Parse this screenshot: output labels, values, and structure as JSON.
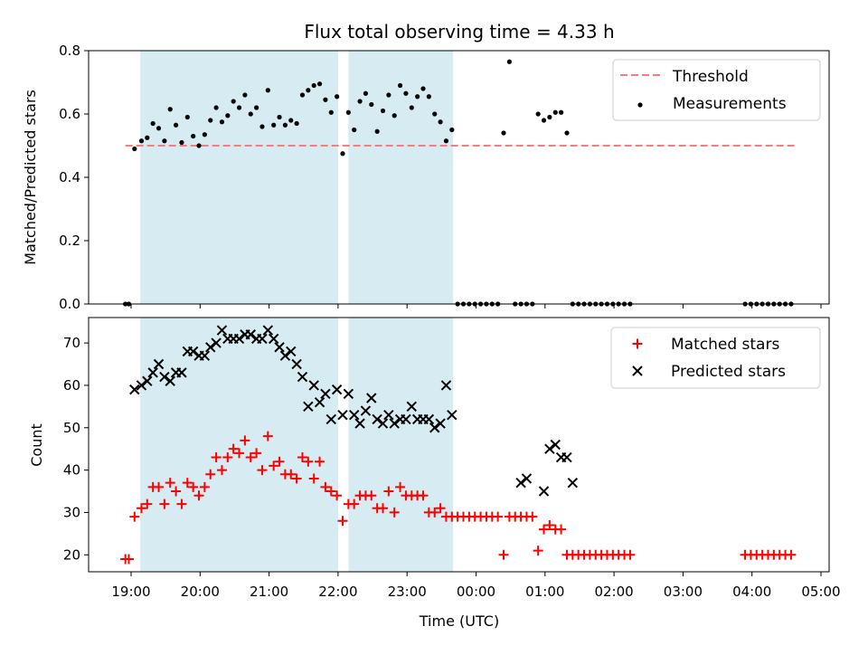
{
  "title": "Flux total observing time = 4.33 h",
  "chart_data": {
    "type": "scatter",
    "title": "Flux total observing time = 4.33 h",
    "xlabel": "Time (UTC)",
    "x_ticks": [
      "19:00",
      "20:00",
      "21:00",
      "22:00",
      "23:00",
      "00:00",
      "01:00",
      "02:00",
      "03:00",
      "04:00",
      "05:00"
    ],
    "shaded_intervals": [
      [
        "19:08",
        "22:00"
      ],
      [
        "22:09",
        "23:40"
      ]
    ],
    "top_panel": {
      "ylabel": "Matched/Predicted stars",
      "ylim": [
        0,
        0.8
      ],
      "y_ticks": [
        "0.0",
        "0.2",
        "0.4",
        "0.6",
        "0.8"
      ],
      "legend": [
        "Threshold",
        "Measurements"
      ],
      "threshold": {
        "name": "Threshold",
        "y": 0.5,
        "x_start": "18:55",
        "x_end": "04:40",
        "color": "#f08080"
      },
      "measurements": {
        "name": "Measurements",
        "color": "#000000",
        "x": [
          "18:55",
          "18:58",
          "19:03",
          "19:09",
          "19:14",
          "19:19",
          "19:24",
          "19:29",
          "19:34",
          "19:39",
          "19:44",
          "19:49",
          "19:54",
          "19:59",
          "20:04",
          "20:09",
          "20:14",
          "20:19",
          "20:24",
          "20:29",
          "20:34",
          "20:39",
          "20:44",
          "20:49",
          "20:54",
          "20:59",
          "21:04",
          "21:09",
          "21:14",
          "21:19",
          "21:24",
          "21:29",
          "21:34",
          "21:39",
          "21:44",
          "21:49",
          "21:54",
          "21:59",
          "22:04",
          "22:09",
          "22:14",
          "22:19",
          "22:24",
          "22:29",
          "22:34",
          "22:39",
          "22:44",
          "22:49",
          "22:54",
          "22:59",
          "23:04",
          "23:09",
          "23:14",
          "23:19",
          "23:24",
          "23:29",
          "23:34",
          "23:39",
          "23:44",
          "23:49",
          "23:54",
          "23:59",
          "00:04",
          "00:09",
          "00:14",
          "00:19",
          "00:24",
          "00:29",
          "00:34",
          "00:39",
          "00:44",
          "00:49",
          "00:54",
          "00:59",
          "01:04",
          "01:09",
          "01:14",
          "01:19",
          "01:24",
          "01:29",
          "01:34",
          "01:39",
          "01:44",
          "01:49",
          "01:54",
          "01:59",
          "02:04",
          "02:09",
          "02:14",
          "03:54",
          "03:59",
          "04:04",
          "04:09",
          "04:14",
          "04:19",
          "04:24",
          "04:29",
          "04:34"
        ],
        "y": [
          0.0,
          0.0,
          0.49,
          0.515,
          0.525,
          0.57,
          0.555,
          0.515,
          0.615,
          0.565,
          0.51,
          0.59,
          0.53,
          0.5,
          0.535,
          0.58,
          0.62,
          0.575,
          0.595,
          0.64,
          0.62,
          0.66,
          0.6,
          0.62,
          0.56,
          0.675,
          0.565,
          0.59,
          0.565,
          0.58,
          0.57,
          0.66,
          0.675,
          0.69,
          0.695,
          0.645,
          0.605,
          0.655,
          0.475,
          0.605,
          0.55,
          0.64,
          0.665,
          0.63,
          0.545,
          0.61,
          0.66,
          0.595,
          0.69,
          0.665,
          0.62,
          0.655,
          0.68,
          0.655,
          0.6,
          0.575,
          0.515,
          0.55,
          0.0,
          0.0,
          0.0,
          0.0,
          0.0,
          0.0,
          0.0,
          0.0,
          0.54,
          0.765,
          0.0,
          0.0,
          0.0,
          0.0,
          0.6,
          0.58,
          0.59,
          0.605,
          0.605,
          0.54,
          0.0,
          0.0,
          0.0,
          0.0,
          0.0,
          0.0,
          0.0,
          0.0,
          0.0,
          0.0,
          0.0,
          0.0,
          0.0,
          0.0,
          0.0,
          0.0,
          0.0,
          0.0,
          0.0,
          0.0
        ]
      }
    },
    "bottom_panel": {
      "ylabel": "Count",
      "ylim": [
        16,
        76
      ],
      "y_ticks": [
        "20",
        "30",
        "40",
        "50",
        "60",
        "70"
      ],
      "legend": [
        "Matched stars",
        "Predicted stars"
      ],
      "series": [
        {
          "name": "Matched stars",
          "marker": "plus",
          "color": "#ff0000",
          "x": [
            "18:55",
            "18:58",
            "19:03",
            "19:09",
            "19:14",
            "19:19",
            "19:24",
            "19:29",
            "19:34",
            "19:39",
            "19:44",
            "19:49",
            "19:54",
            "19:59",
            "20:04",
            "20:09",
            "20:14",
            "20:19",
            "20:24",
            "20:29",
            "20:34",
            "20:39",
            "20:44",
            "20:49",
            "20:54",
            "20:59",
            "21:04",
            "21:09",
            "21:14",
            "21:19",
            "21:24",
            "21:29",
            "21:34",
            "21:39",
            "21:44",
            "21:49",
            "21:54",
            "21:59",
            "22:04",
            "22:09",
            "22:14",
            "22:19",
            "22:24",
            "22:29",
            "22:34",
            "22:39",
            "22:44",
            "22:49",
            "22:54",
            "22:59",
            "23:04",
            "23:09",
            "23:14",
            "23:19",
            "23:24",
            "23:29",
            "23:34",
            "23:39",
            "23:44",
            "23:49",
            "23:54",
            "23:59",
            "00:04",
            "00:09",
            "00:14",
            "00:19",
            "00:24",
            "00:29",
            "00:34",
            "00:39",
            "00:44",
            "00:49",
            "00:54",
            "00:59",
            "01:04",
            "01:09",
            "01:14",
            "01:19",
            "01:24",
            "01:29",
            "01:34",
            "01:39",
            "01:44",
            "01:49",
            "01:54",
            "01:59",
            "02:04",
            "02:09",
            "02:14",
            "03:54",
            "03:59",
            "04:04",
            "04:09",
            "04:14",
            "04:19",
            "04:24",
            "04:29",
            "04:34"
          ],
          "y": [
            19,
            19,
            29,
            31,
            32,
            36,
            36,
            32,
            37,
            35,
            32,
            37,
            36,
            34,
            36,
            39,
            43,
            40,
            43,
            45,
            44,
            47,
            43,
            44,
            40,
            48,
            41,
            42,
            39,
            39,
            38,
            43,
            42,
            38,
            42,
            36,
            35,
            34,
            28,
            32,
            32,
            34,
            34,
            34,
            31,
            31,
            35,
            30,
            36,
            34,
            34,
            34,
            34,
            30,
            30,
            31,
            29,
            29,
            29,
            29,
            29,
            29,
            29,
            29,
            29,
            29,
            20,
            29,
            29,
            29,
            29,
            29,
            21,
            26,
            27,
            26,
            26,
            20,
            20,
            20,
            20,
            20,
            20,
            20,
            20,
            20,
            20,
            20,
            20,
            20,
            20,
            20,
            20,
            20,
            20,
            20,
            20,
            20
          ]
        },
        {
          "name": "Predicted stars",
          "marker": "x",
          "color": "#000000",
          "x": [
            "19:03",
            "19:09",
            "19:14",
            "19:19",
            "19:24",
            "19:29",
            "19:34",
            "19:39",
            "19:44",
            "19:49",
            "19:54",
            "19:59",
            "20:04",
            "20:09",
            "20:14",
            "20:19",
            "20:24",
            "20:29",
            "20:34",
            "20:39",
            "20:44",
            "20:49",
            "20:54",
            "20:59",
            "21:04",
            "21:09",
            "21:14",
            "21:19",
            "21:24",
            "21:29",
            "21:34",
            "21:39",
            "21:44",
            "21:49",
            "21:54",
            "21:59",
            "22:04",
            "22:09",
            "22:14",
            "22:19",
            "22:24",
            "22:29",
            "22:34",
            "22:39",
            "22:44",
            "22:49",
            "22:54",
            "22:59",
            "23:04",
            "23:09",
            "23:14",
            "23:19",
            "23:24",
            "23:29",
            "23:34",
            "23:39",
            "00:39",
            "00:44",
            "00:59",
            "01:04",
            "01:09",
            "01:14",
            "01:19",
            "01:24"
          ],
          "y": [
            59,
            60,
            61,
            63,
            65,
            62,
            61,
            63,
            63,
            68,
            68,
            67,
            67,
            69,
            70,
            73,
            71,
            71,
            71,
            72,
            72,
            71,
            71,
            73,
            71,
            69,
            67,
            68,
            65,
            62,
            55,
            60,
            56,
            58,
            52,
            59,
            53,
            58,
            53,
            51,
            54,
            57,
            52,
            51,
            53,
            51,
            52,
            52,
            55,
            52,
            52,
            52,
            50,
            51,
            60,
            53,
            37,
            38,
            35,
            45,
            46,
            43,
            43,
            37
          ]
        }
      ]
    }
  }
}
